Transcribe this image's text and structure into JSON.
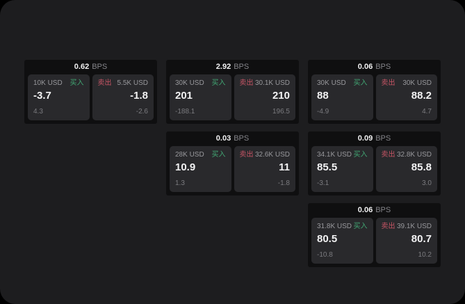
{
  "colors": {
    "accent_buy": "#41a673",
    "accent_sell": "#c75565",
    "page_bg": "#1d1d1f",
    "card_bg": "#0f0f10",
    "panel_bg": "#29292c"
  },
  "labels": {
    "bps_suffix": "BPS",
    "buy": "买入",
    "sell": "卖出"
  },
  "cards": [
    {
      "bps": "0.62",
      "buy": {
        "size": "10K USD",
        "value": "-3.7",
        "sub": "4.3"
      },
      "sell": {
        "size": "5.5K USD",
        "value": "-1.8",
        "sub": "-2.6"
      }
    },
    {
      "bps": "2.92",
      "buy": {
        "size": "30K USD",
        "value": "201",
        "sub": "-188.1"
      },
      "sell": {
        "size": "30.1K USD",
        "value": "210",
        "sub": "196.5"
      }
    },
    {
      "bps": "0.06",
      "buy": {
        "size": "30K USD",
        "value": "88",
        "sub": "-4.9"
      },
      "sell": {
        "size": "30K USD",
        "value": "88.2",
        "sub": "4.7"
      }
    },
    {
      "bps": "0.03",
      "buy": {
        "size": "28K USD",
        "value": "10.9",
        "sub": "1.3"
      },
      "sell": {
        "size": "32.6K USD",
        "value": "11",
        "sub": "-1.8"
      }
    },
    {
      "bps": "0.09",
      "buy": {
        "size": "34.1K USD",
        "value": "85.5",
        "sub": "-3.1"
      },
      "sell": {
        "size": "32.8K USD",
        "value": "85.8",
        "sub": "3.0"
      }
    },
    {
      "bps": "0.06",
      "buy": {
        "size": "31.8K USD",
        "value": "80.5",
        "sub": "-10.8"
      },
      "sell": {
        "size": "39.1K USD",
        "value": "80.7",
        "sub": "10.2"
      }
    }
  ]
}
